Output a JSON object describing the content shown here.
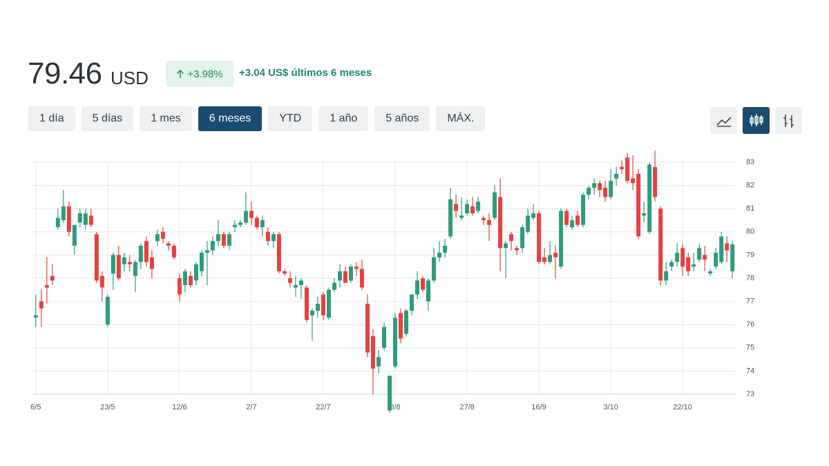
{
  "header": {
    "price": "79.46",
    "currency": "USD",
    "change_pct": "+3.98%",
    "change_abs": "+3.04 US$ últimos 6 meses"
  },
  "range_buttons": {
    "items": [
      "1 día",
      "5 días",
      "1 mes",
      "6 meses",
      "YTD",
      "1 año",
      "5 años",
      "MÁX."
    ],
    "active": 3
  },
  "chart_data": {
    "type": "candlestick",
    "up_color": "#2e9b7c",
    "down_color": "#e5413e",
    "grid": true,
    "xlim": [
      -0.6,
      126.6
    ],
    "xticks": [
      {
        "value": 0,
        "label": "6/5"
      },
      {
        "value": 13,
        "label": "23/5"
      },
      {
        "value": 26,
        "label": "12/6"
      },
      {
        "value": 39,
        "label": "2/7"
      },
      {
        "value": 52,
        "label": "22/7"
      },
      {
        "value": 65,
        "label": "8/8"
      },
      {
        "value": 78,
        "label": "27/8"
      },
      {
        "value": 91,
        "label": "16/9"
      },
      {
        "value": 104,
        "label": "3/10"
      },
      {
        "value": 117,
        "label": "22/10"
      }
    ],
    "ylim": [
      73,
      83
    ],
    "yticks": [
      73,
      74,
      75,
      76,
      77,
      78,
      79,
      80,
      81,
      82,
      83
    ],
    "open": [
      76.3,
      77.0,
      77.7,
      78.1,
      80.2,
      80.5,
      81.1,
      79.4,
      80.4,
      80.3,
      80.7,
      79.9,
      78.1,
      76.0,
      78.2,
      79.0,
      78.6,
      78.7,
      78.1,
      78.7,
      79.6,
      78.9,
      79.6,
      80.0,
      79.5,
      79.4,
      78.0,
      77.7,
      78.1,
      77.9,
      78.3,
      79.1,
      79.2,
      79.6,
      79.9,
      79.4,
      80.2,
      80.3,
      80.4,
      80.9,
      80.6,
      80.2,
      80.0,
      79.6,
      79.9,
      78.3,
      78.0,
      77.6,
      77.7,
      77.6,
      76.4,
      76.6,
      77.3,
      76.3,
      77.5,
      77.9,
      78.3,
      77.9,
      78.5,
      78.4,
      76.9,
      75.5,
      74.2,
      75.0,
      72.3,
      74.2,
      76.5,
      75.6,
      76.6,
      77.3,
      78.0,
      77.0,
      77.9,
      78.9,
      79.1,
      79.8,
      81.2,
      80.6,
      80.8,
      81.1,
      80.9,
      80.6,
      80.5,
      80.6,
      81.5,
      79.3,
      79.9,
      79.3,
      79.3,
      80.0,
      80.6,
      80.8,
      78.9,
      78.7,
      79.1,
      78.5,
      80.9,
      80.2,
      80.7,
      80.3,
      81.6,
      81.9,
      82.1,
      81.9,
      81.5,
      82.3,
      82.8,
      83.2,
      82.3,
      82.5,
      80.7,
      80.0,
      82.8,
      81.0,
      77.9,
      78.5,
      78.7,
      79.3,
      78.9,
      78.5,
      78.8,
      79.0,
      78.2,
      78.5,
      78.7,
      79.5,
      78.3
    ],
    "high": [
      77.3,
      77.5,
      78.9,
      78.6,
      81.0,
      81.8,
      81.3,
      80.3,
      81.0,
      81.0,
      81.0,
      80.0,
      78.3,
      77.3,
      79.1,
      79.4,
      79.1,
      79.0,
      78.8,
      79.5,
      79.8,
      79.2,
      80.1,
      80.2,
      79.6,
      79.5,
      78.2,
      78.4,
      78.3,
      78.7,
      79.2,
      79.6,
      79.8,
      80.5,
      80.0,
      80.0,
      80.5,
      80.5,
      81.7,
      81.3,
      80.7,
      80.7,
      80.2,
      80.0,
      80.0,
      78.4,
      78.3,
      78.1,
      78.0,
      77.7,
      76.7,
      77.2,
      77.4,
      77.6,
      78.0,
      78.6,
      78.5,
      78.6,
      78.7,
      78.8,
      77.3,
      75.8,
      74.9,
      76.1,
      73.8,
      76.5,
      76.7,
      76.7,
      77.3,
      78.3,
      78.1,
      78.0,
      79.3,
      79.6,
      79.7,
      81.9,
      81.6,
      81.5,
      81.4,
      81.5,
      81.5,
      80.7,
      80.8,
      82.0,
      82.3,
      79.6,
      80.0,
      79.4,
      80.3,
      81.0,
      81.2,
      80.9,
      79.3,
      79.6,
      79.4,
      81.0,
      81.0,
      80.7,
      80.9,
      81.7,
      82.0,
      82.3,
      82.2,
      82.2,
      82.7,
      82.8,
      83.1,
      83.4,
      83.3,
      82.7,
      81.3,
      83.0,
      83.5,
      81.1,
      78.7,
      78.8,
      79.5,
      79.5,
      79.1,
      79.1,
      79.5,
      79.4,
      78.4,
      79.3,
      80.0,
      79.8,
      79.6
    ],
    "low": [
      75.9,
      75.9,
      76.9,
      77.7,
      80.1,
      80.4,
      79.8,
      79.0,
      80.2,
      80.1,
      80.2,
      77.8,
      77.0,
      75.9,
      77.5,
      77.9,
      78.3,
      78.3,
      77.4,
      78.4,
      78.5,
      78.0,
      79.4,
      79.5,
      79.2,
      78.8,
      77.0,
      77.4,
      77.6,
      77.7,
      78.1,
      77.7,
      79.0,
      79.4,
      79.3,
      79.2,
      80.0,
      80.2,
      80.3,
      80.3,
      80.1,
      79.8,
      79.4,
      79.3,
      78.2,
      78.1,
      77.6,
      77.2,
      77.1,
      76.1,
      75.3,
      76.3,
      76.2,
      76.2,
      77.4,
      77.6,
      77.8,
      77.8,
      78.1,
      77.5,
      74.6,
      73.0,
      73.9,
      74.9,
      72.2,
      74.1,
      75.2,
      75.5,
      76.4,
      77.1,
      77.4,
      76.6,
      77.8,
      78.7,
      78.9,
      79.7,
      80.6,
      80.5,
      80.7,
      80.7,
      80.8,
      80.3,
      79.6,
      80.5,
      78.3,
      78.0,
      79.2,
      79.0,
      79.1,
      79.9,
      80.5,
      78.6,
      78.6,
      78.6,
      78.0,
      78.4,
      80.2,
      80.1,
      80.2,
      80.2,
      81.4,
      81.6,
      81.5,
      81.3,
      81.4,
      82.0,
      82.5,
      82.1,
      81.8,
      79.7,
      80.4,
      79.9,
      81.3,
      77.7,
      77.7,
      78.3,
      78.5,
      78.1,
      78.1,
      78.3,
      78.7,
      78.3,
      78.1,
      78.4,
      78.6,
      78.7,
      78.0
    ],
    "close": [
      76.4,
      76.7,
      77.6,
      77.9,
      80.6,
      81.1,
      80.0,
      80.3,
      80.8,
      80.8,
      80.3,
      77.9,
      77.6,
      77.2,
      79.0,
      78.0,
      78.9,
      78.6,
      78.7,
      79.4,
      78.7,
      78.4,
      79.9,
      79.7,
      79.4,
      78.9,
      77.3,
      78.3,
      77.7,
      78.6,
      79.1,
      79.2,
      79.6,
      79.9,
      79.4,
      79.9,
      80.3,
      80.4,
      80.9,
      80.6,
      80.2,
      80.5,
      79.6,
      79.9,
      78.3,
      78.2,
      77.8,
      77.7,
      77.9,
      76.2,
      76.6,
      76.9,
      76.4,
      77.5,
      77.8,
      78.3,
      77.8,
      78.5,
      78.4,
      77.6,
      74.8,
      74.1,
      74.6,
      75.9,
      73.8,
      76.3,
      75.4,
      76.6,
      77.3,
      77.9,
      77.5,
      77.9,
      78.9,
      79.1,
      79.4,
      81.4,
      80.9,
      80.7,
      81.2,
      80.8,
      81.3,
      80.5,
      80.3,
      81.7,
      79.3,
      79.5,
      79.6,
      79.2,
      80.2,
      80.7,
      80.8,
      78.7,
      78.7,
      79.0,
      78.9,
      80.9,
      80.3,
      80.5,
      80.3,
      81.6,
      81.9,
      82.1,
      81.8,
      81.5,
      82.2,
      82.5,
      82.7,
      82.2,
      82.1,
      79.8,
      80.8,
      82.9,
      81.5,
      77.9,
      78.3,
      78.7,
      79.1,
      78.5,
      78.3,
      78.6,
      79.3,
      78.8,
      78.3,
      79.1,
      79.8,
      79.2,
      79.46
    ]
  }
}
